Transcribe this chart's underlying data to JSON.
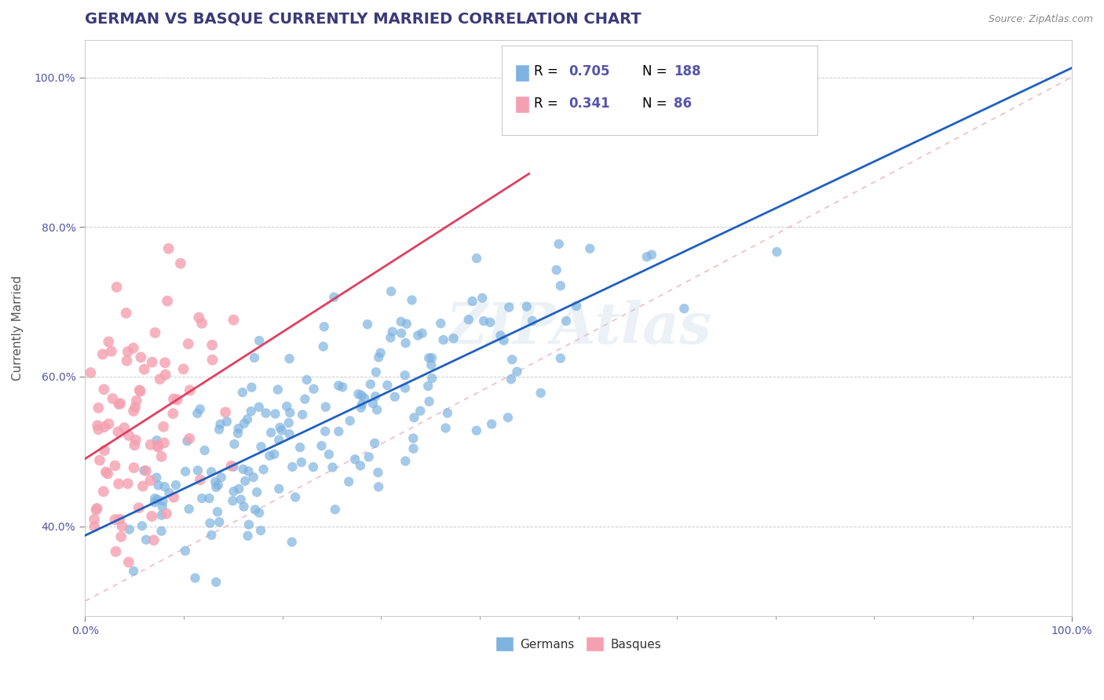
{
  "title": "GERMAN VS BASQUE CURRENTLY MARRIED CORRELATION CHART",
  "source": "Source: ZipAtlas.com",
  "xlabel": "",
  "ylabel": "Currently Married",
  "xlim": [
    0.0,
    1.0
  ],
  "ylim": [
    0.25,
    1.05
  ],
  "german_R": 0.705,
  "german_N": 188,
  "basque_R": 0.341,
  "basque_N": 86,
  "german_color": "#7eb3e0",
  "basque_color": "#f4a0b0",
  "german_line_color": "#2060c0",
  "basque_line_color": "#e04060",
  "diagonal_color": "#e8a0b0",
  "background_color": "#ffffff",
  "grid_color": "#cccccc",
  "title_color": "#3a3a7a",
  "axis_label_color": "#5555aa",
  "watermark": "ZIPAtlas",
  "xtick_labels": [
    "0.0%",
    "100.0%"
  ],
  "ytick_labels": [
    "40.0%",
    "60.0%",
    "80.0%",
    "100.0%"
  ],
  "legend_labels": [
    "Germans",
    "Basques"
  ],
  "title_fontsize": 14,
  "axis_fontsize": 11,
  "tick_fontsize": 10
}
